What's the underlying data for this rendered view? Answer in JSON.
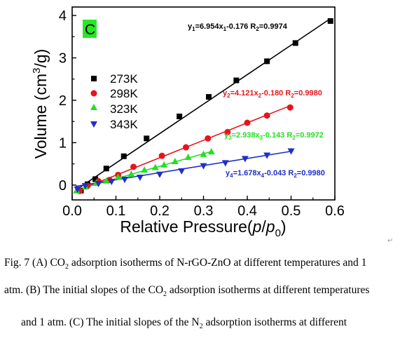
{
  "chart_data": {
    "type": "scatter",
    "panel_label": "C",
    "xlabel": "Relative Pressure(p/p0)",
    "xlabel_parts": {
      "pre": "Relative Pressure(",
      "p": "p",
      "slash": "/",
      "p0": "p",
      "zero": "0",
      "post": ")"
    },
    "ylabel": "Volume (cm3/g)",
    "ylabel_parts": {
      "pre": "Volume (cm",
      "sup": "3",
      "post": "/g)"
    },
    "xlim": [
      0.0,
      0.6
    ],
    "ylim": [
      -0.35,
      4.2
    ],
    "xticks": [
      "0.0",
      "0.1",
      "0.2",
      "0.3",
      "0.4",
      "0.5",
      "0.6"
    ],
    "yticks": [
      "0",
      "1",
      "2",
      "3",
      "4"
    ],
    "legend_position": "left",
    "series": [
      {
        "name": "273K",
        "color": "#000000",
        "marker": "square",
        "x": [
          0.02,
          0.035,
          0.053,
          0.078,
          0.118,
          0.17,
          0.245,
          0.312,
          0.375,
          0.445,
          0.51,
          0.59
        ],
        "y": [
          -0.13,
          0.02,
          0.14,
          0.39,
          0.68,
          1.1,
          1.62,
          2.08,
          2.47,
          2.92,
          3.35,
          3.87
        ],
        "fit": {
          "slope": 6.954,
          "intercept": -0.176,
          "x_range": [
            0.012,
            0.59
          ]
        },
        "equation": {
          "y": "y",
          "y_sub": "1",
          "mid": "=6.954x",
          "x_sub": "1",
          "tail": "-0.176  R",
          "r_sub": "2",
          "r_val": "=0.9974"
        }
      },
      {
        "name": "298K",
        "color": "#e8141b",
        "marker": "circle",
        "x": [
          0.017,
          0.035,
          0.06,
          0.085,
          0.105,
          0.14,
          0.205,
          0.26,
          0.31,
          0.355,
          0.4,
          0.445,
          0.498
        ],
        "y": [
          -0.14,
          -0.02,
          0.09,
          0.12,
          0.24,
          0.43,
          0.69,
          0.89,
          1.1,
          1.25,
          1.47,
          1.64,
          1.83
        ],
        "fit": {
          "slope": 4.121,
          "intercept": -0.18,
          "x_range": [
            0.012,
            0.5
          ]
        },
        "equation": {
          "y": "y",
          "y_sub": "2",
          "mid": "=4.121x",
          "x_sub": "2",
          "tail": "-0.180  R",
          "r_sub": "2",
          "r_val": "=0.9980"
        }
      },
      {
        "name": "323K",
        "color": "#22e022",
        "marker": "triangle-up",
        "x": [
          0.01,
          0.03,
          0.055,
          0.078,
          0.105,
          0.135,
          0.165,
          0.19,
          0.21,
          0.235,
          0.265,
          0.3,
          0.318
        ],
        "y": [
          -0.13,
          -0.04,
          0.05,
          0.1,
          0.19,
          0.26,
          0.36,
          0.42,
          0.48,
          0.56,
          0.66,
          0.73,
          0.79
        ],
        "fit": {
          "slope": 2.938,
          "intercept": -0.143,
          "x_range": [
            0.008,
            0.32
          ]
        },
        "equation": {
          "y": "y",
          "y_sub": "3",
          "mid": "=2.938x",
          "x_sub": "3",
          "tail": "-0.143  R",
          "r_sub": "2",
          "r_val": "=0.9972"
        }
      },
      {
        "name": "343K",
        "color": "#1f2fc9",
        "marker": "triangle-down",
        "x": [
          0.012,
          0.03,
          0.06,
          0.09,
          0.12,
          0.155,
          0.2,
          0.25,
          0.3,
          0.35,
          0.395,
          0.445,
          0.5
        ],
        "y": [
          -0.1,
          -0.02,
          0.03,
          0.08,
          0.13,
          0.18,
          0.25,
          0.33,
          0.45,
          0.52,
          0.62,
          0.7,
          0.8
        ],
        "fit": {
          "slope": 1.678,
          "intercept": -0.043,
          "x_range": [
            0.008,
            0.505
          ]
        },
        "equation": {
          "y": "y",
          "y_sub": "4",
          "mid": "=1.678x",
          "x_sub": "4",
          "tail": "-0.043  R",
          "r_sub": "2",
          "r_val": "=0.9980"
        }
      }
    ]
  },
  "caption": {
    "line1": {
      "a": "Fig. 7 (A) CO",
      "sub": "2",
      "b": " adsorption isotherms of N-rGO-ZnO at different temperatures and 1"
    },
    "line2": {
      "a": "atm. (B) The initial slopes of the CO",
      "sub": "2",
      "b": " adsorption isotherms at different temperatures"
    },
    "line3": {
      "a": "and 1 atm. (C) The initial slopes of the N",
      "sub": "2",
      "b": " adsorption isotherms at different"
    }
  },
  "return_mark": "↵"
}
